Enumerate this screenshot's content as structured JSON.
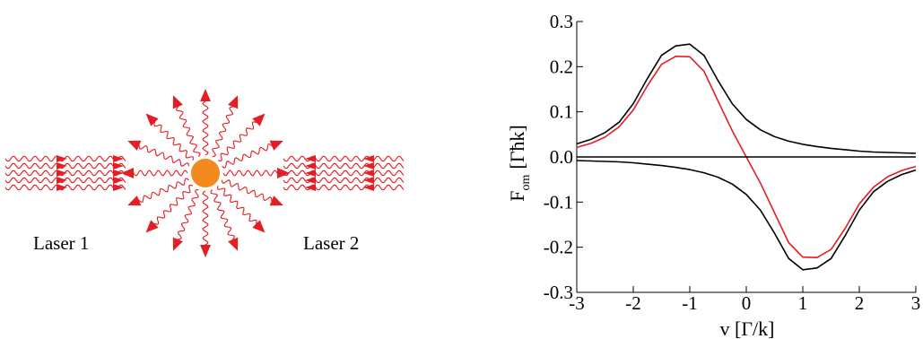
{
  "diagram": {
    "laser1_label": "Laser 1",
    "laser2_label": "Laser 2",
    "wave_color": "#e31e24",
    "atom_color": "#f28a1e"
  },
  "chart_data": {
    "type": "line",
    "xlabel": "v [Γ/k]",
    "ylabel": "F",
    "ylabel_sub": "om",
    "ylabel_unit": "[Γħk]",
    "xlim": [
      -3,
      3
    ],
    "ylim": [
      -0.3,
      0.3
    ],
    "xticks": [
      "-3",
      "-2",
      "-1",
      "0",
      "1",
      "2",
      "3"
    ],
    "yticks": [
      "0.3",
      "0.2",
      "0.1",
      "0.0",
      "-0.1",
      "-0.2",
      "-0.3"
    ],
    "grid": false,
    "x": [
      -3.0,
      -2.75,
      -2.5,
      -2.25,
      -2.0,
      -1.75,
      -1.5,
      -1.25,
      -1.0,
      -0.75,
      -0.5,
      -0.25,
      0.0,
      0.25,
      0.5,
      0.75,
      1.0,
      1.25,
      1.5,
      1.75,
      2.0,
      2.25,
      2.5,
      2.75,
      3.0
    ],
    "series": [
      {
        "color": "#000000",
        "values": [
          0.029,
          0.039,
          0.054,
          0.077,
          0.118,
          0.174,
          0.225,
          0.246,
          0.25,
          0.225,
          0.169,
          0.118,
          0.083,
          0.06,
          0.045,
          0.035,
          0.028,
          0.023,
          0.019,
          0.016,
          0.013,
          0.011,
          0.01,
          0.009,
          0.008
        ]
      },
      {
        "color": "#000000",
        "values": [
          -0.008,
          -0.009,
          -0.01,
          -0.011,
          -0.013,
          -0.016,
          -0.019,
          -0.023,
          -0.028,
          -0.035,
          -0.045,
          -0.06,
          -0.083,
          -0.118,
          -0.169,
          -0.225,
          -0.25,
          -0.246,
          -0.225,
          -0.174,
          -0.118,
          -0.077,
          -0.054,
          -0.039,
          -0.029
        ]
      },
      {
        "color": "#e31e24",
        "values": [
          0.021,
          0.03,
          0.044,
          0.067,
          0.104,
          0.158,
          0.205,
          0.223,
          0.222,
          0.19,
          0.124,
          0.058,
          0.0,
          -0.058,
          -0.124,
          -0.19,
          -0.222,
          -0.223,
          -0.205,
          -0.158,
          -0.104,
          -0.067,
          -0.044,
          -0.03,
          -0.021
        ]
      },
      {
        "color": "#000000",
        "values": [
          0,
          0,
          0,
          0,
          0,
          0,
          0,
          0,
          0,
          0,
          0,
          0,
          0,
          0,
          0,
          0,
          0,
          0,
          0,
          0,
          0,
          0,
          0,
          0,
          0
        ]
      }
    ]
  }
}
